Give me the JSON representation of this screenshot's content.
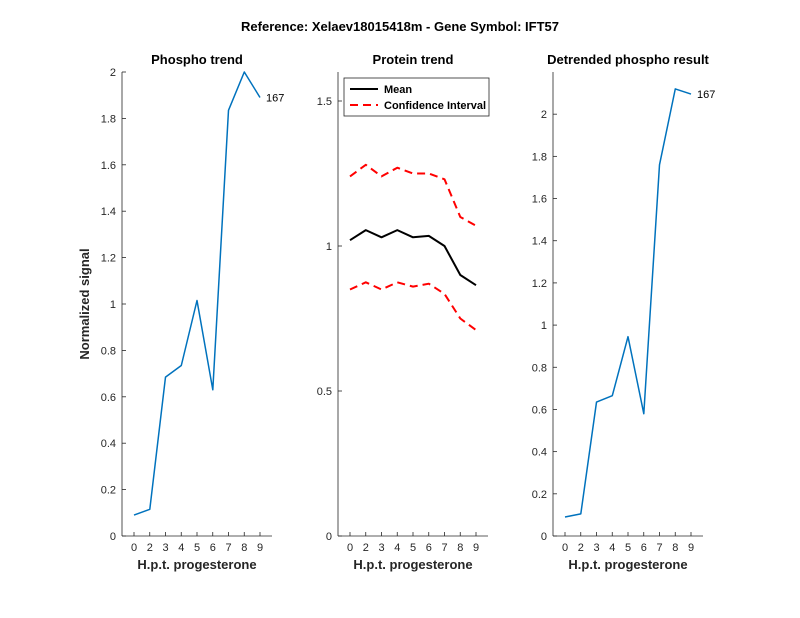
{
  "figure": {
    "title": "Reference:  Xelaev18015418m - Gene Symbol:  IFT57"
  },
  "chart_data": [
    {
      "type": "line",
      "title": "Phospho trend",
      "xlabel": "H.p.t. progesterone",
      "ylabel": "Normalized signal",
      "x_tick_labels": [
        "0",
        "2",
        "3",
        "4",
        "5",
        "6",
        "7",
        "8",
        "9"
      ],
      "y_ticks": [
        0,
        0.2,
        0.4,
        0.6,
        0.8,
        1,
        1.2,
        1.4,
        1.6,
        1.8,
        2
      ],
      "y_tick_labels": [
        "0",
        "0.2",
        "0.4",
        "0.6",
        "0.8",
        "1",
        "1.2",
        "1.4",
        "1.6",
        "1.8",
        "2"
      ],
      "ylim": [
        0,
        2
      ],
      "series": [
        {
          "color": "#0072BD",
          "style": "solid",
          "values": [
            0.09,
            0.115,
            0.685,
            0.735,
            1.015,
            0.63,
            1.835,
            2.0,
            1.89
          ]
        }
      ],
      "annotation": {
        "text": "167",
        "at_index": 8
      }
    },
    {
      "type": "line",
      "title": "Protein trend",
      "xlabel": "H.p.t. progesterone",
      "x_tick_labels": [
        "0",
        "2",
        "3",
        "4",
        "5",
        "6",
        "7",
        "8",
        "9"
      ],
      "y_ticks": [
        0,
        0.5,
        1,
        1.5
      ],
      "y_tick_labels": [
        "0",
        "0.5",
        "1",
        "1.5"
      ],
      "ylim": [
        0,
        1.6
      ],
      "legend_position": "top-left",
      "series": [
        {
          "name": "Mean",
          "color": "#000000",
          "style": "solid",
          "values": [
            1.02,
            1.055,
            1.03,
            1.055,
            1.03,
            1.035,
            1.0,
            0.9,
            0.865
          ]
        },
        {
          "name": "Confidence Interval",
          "color": "#FF0000",
          "style": "dashed",
          "values": [
            1.24,
            1.28,
            1.24,
            1.27,
            1.25,
            1.25,
            1.23,
            1.1,
            1.07
          ]
        },
        {
          "color": "#FF0000",
          "style": "dashed",
          "values": [
            0.85,
            0.875,
            0.85,
            0.875,
            0.86,
            0.87,
            0.835,
            0.75,
            0.71
          ]
        }
      ]
    },
    {
      "type": "line",
      "title": "Detrended phospho result",
      "xlabel": "H.p.t. progesterone",
      "x_tick_labels": [
        "0",
        "2",
        "3",
        "4",
        "5",
        "6",
        "7",
        "8",
        "9"
      ],
      "y_ticks": [
        0,
        0.2,
        0.4,
        0.6,
        0.8,
        1,
        1.2,
        1.4,
        1.6,
        1.8,
        2
      ],
      "y_tick_labels": [
        "0",
        "0.2",
        "0.4",
        "0.6",
        "0.8",
        "1",
        "1.2",
        "1.4",
        "1.6",
        "1.8",
        "2"
      ],
      "ylim": [
        0,
        2.2
      ],
      "series": [
        {
          "color": "#0072BD",
          "style": "solid",
          "values": [
            0.09,
            0.105,
            0.635,
            0.665,
            0.945,
            0.58,
            1.76,
            2.12,
            2.095
          ]
        }
      ],
      "annotation": {
        "text": "167",
        "at_index": 8
      }
    }
  ]
}
